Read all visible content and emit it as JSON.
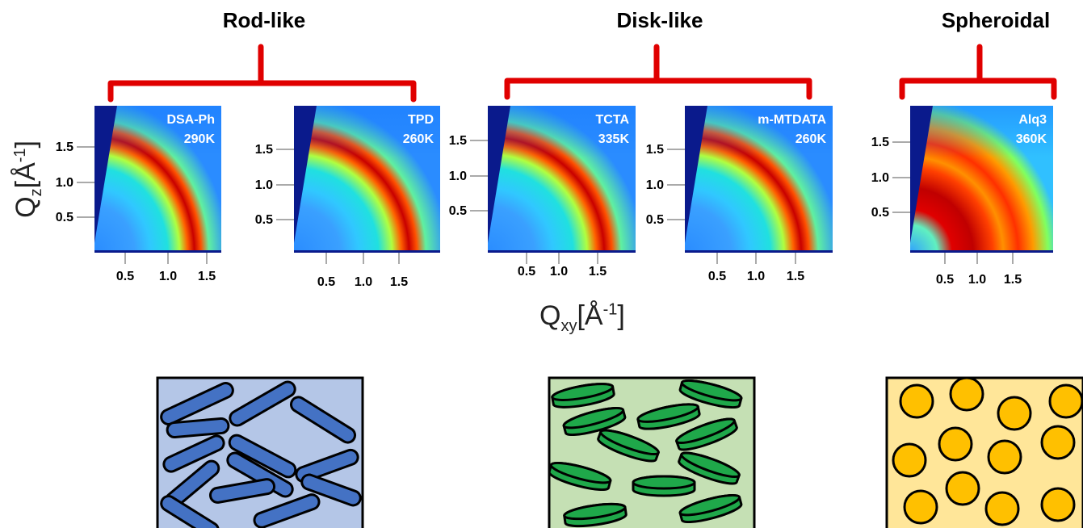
{
  "categories": [
    {
      "id": "rod",
      "label": "Rod-like",
      "color": "#e00000"
    },
    {
      "id": "disk",
      "label": "Disk-like",
      "color": "#e00000"
    },
    {
      "id": "sphere",
      "label": "Spheroidal",
      "color": "#e00000"
    }
  ],
  "panels": [
    {
      "name": "DSA-Ph",
      "temp": "290K",
      "yticks": [
        "1.5",
        "1.0",
        "0.5"
      ],
      "xticks": [
        "0.5",
        "1.0",
        "1.5"
      ]
    },
    {
      "name": "TPD",
      "temp": "260K",
      "yticks": [
        "1.5",
        "1.0",
        "0.5"
      ],
      "xticks": [
        "0.5",
        "1.0",
        "1.5"
      ]
    },
    {
      "name": "TCTA",
      "temp": "335K",
      "yticks": [
        "1.5",
        "1.0",
        "0.5"
      ],
      "xticks": [
        "0.5",
        "1.0",
        "1.5"
      ]
    },
    {
      "name": "m-MTDATA",
      "temp": "260K",
      "yticks": [
        "1.5",
        "1.0",
        "0.5"
      ],
      "xticks": [
        "0.5",
        "1.0",
        "1.5"
      ]
    },
    {
      "name": "Alq3",
      "temp": "360K",
      "yticks": [
        "1.5",
        "1.0",
        "0.5"
      ],
      "xticks": [
        "0.5",
        "1.0",
        "1.5"
      ]
    }
  ],
  "axes": {
    "y_title_main": "Q",
    "y_title_sub": "z",
    "y_title_unit": "[Å",
    "y_title_sup": "-1",
    "y_title_close": "]",
    "x_title_main": "Q",
    "x_title_sub": "xy",
    "x_title_unit": "[Å",
    "x_title_sup": "-1",
    "x_title_close": "]"
  },
  "schematics": [
    {
      "type": "rods",
      "fill": "#b4c6e7",
      "shape_fill": "#4472c4"
    },
    {
      "type": "disks",
      "fill": "#c5e0b4",
      "shape_fill": "#1fa84a"
    },
    {
      "type": "spheres",
      "fill": "#ffe699",
      "shape_fill": "#ffc000"
    }
  ]
}
